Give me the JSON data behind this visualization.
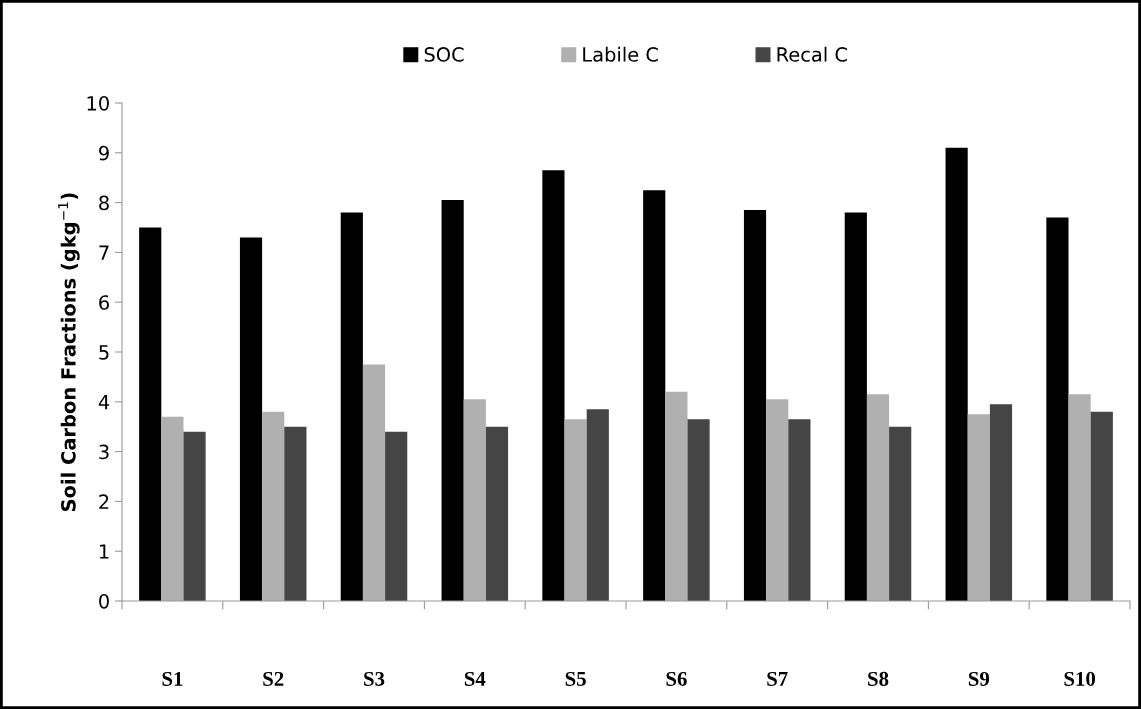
{
  "chart_data": {
    "type": "bar",
    "ylabel": "Soil Carbon Fractions (gkg$^{−1}$)",
    "categories": [
      "S1",
      "S2",
      "S3",
      "S4",
      "S5",
      "S6",
      "S7",
      "S8",
      "S9",
      "S10"
    ],
    "series": [
      {
        "name": "SOC",
        "color": "#000000",
        "values": [
          7.5,
          7.3,
          7.8,
          8.05,
          8.65,
          8.25,
          7.85,
          7.8,
          9.1,
          7.7
        ]
      },
      {
        "name": "Labile C",
        "color": "#b0b0b0",
        "values": [
          3.7,
          3.8,
          4.75,
          4.05,
          3.65,
          4.2,
          4.05,
          4.15,
          3.75,
          4.15
        ]
      },
      {
        "name": "Recal C",
        "color": "#454545",
        "values": [
          3.4,
          3.5,
          3.4,
          3.5,
          3.85,
          3.65,
          3.65,
          3.5,
          3.95,
          3.8
        ]
      }
    ],
    "ylim": [
      0,
      10
    ],
    "yticks": [
      0,
      1,
      2,
      3,
      4,
      5,
      6,
      7,
      8,
      9,
      10
    ],
    "grid": false,
    "legend": "top"
  }
}
